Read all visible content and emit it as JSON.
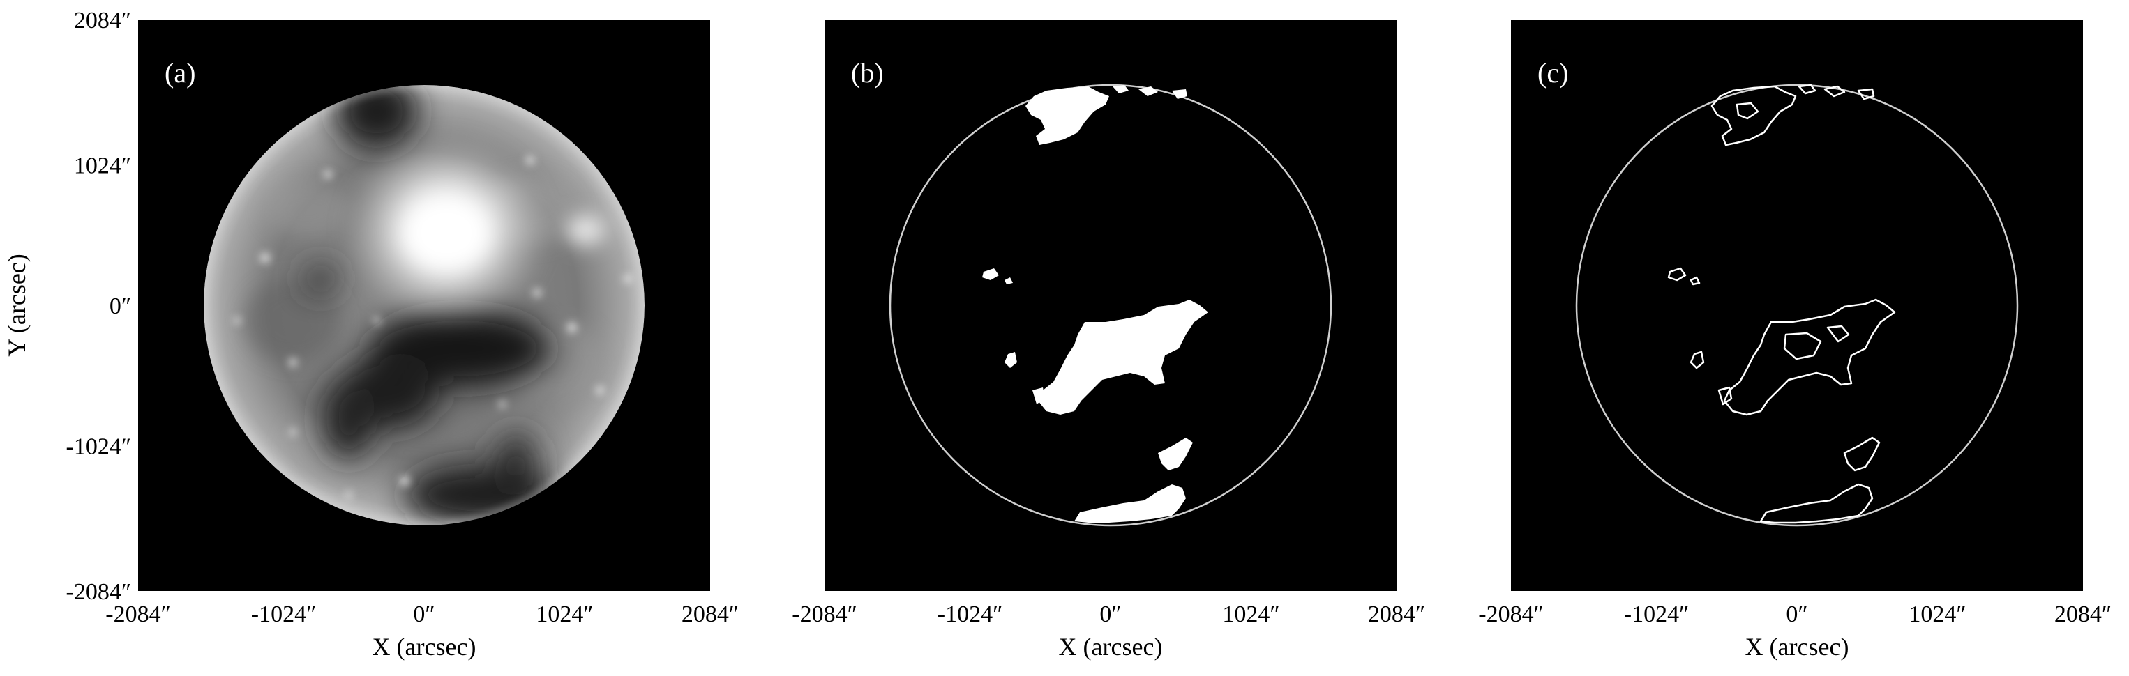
{
  "figure": {
    "panels": [
      {
        "id": "a",
        "label": "(a)",
        "kind": "solar-euv-image",
        "show_y_axis": true
      },
      {
        "id": "b",
        "label": "(b)",
        "kind": "coronal-hole-mask-filled",
        "show_y_axis": false
      },
      {
        "id": "c",
        "label": "(c)",
        "kind": "coronal-hole-mask-contour",
        "show_y_axis": false
      }
    ],
    "x_axis_label": "X (arcsec)",
    "y_axis_label": "Y (arcsec)",
    "x_ticks": [
      "-2084″",
      "-1024″",
      "0″",
      "1024″",
      "2084″"
    ],
    "y_ticks": [
      "2084″",
      "1024″",
      "0″",
      "-1024″",
      "-2084″"
    ],
    "x_tick_values": [
      -2084,
      -1024,
      0,
      1024,
      2084
    ],
    "y_tick_values": [
      2084,
      1024,
      0,
      -1024,
      -2084
    ],
    "axis_range": [
      -2084,
      2084
    ],
    "solar_radius_arcsec": 1600,
    "colors": {
      "background": "#000000",
      "mask": "#ffffff",
      "limb_circle": "#cfcfcf",
      "page": "#ffffff"
    }
  }
}
